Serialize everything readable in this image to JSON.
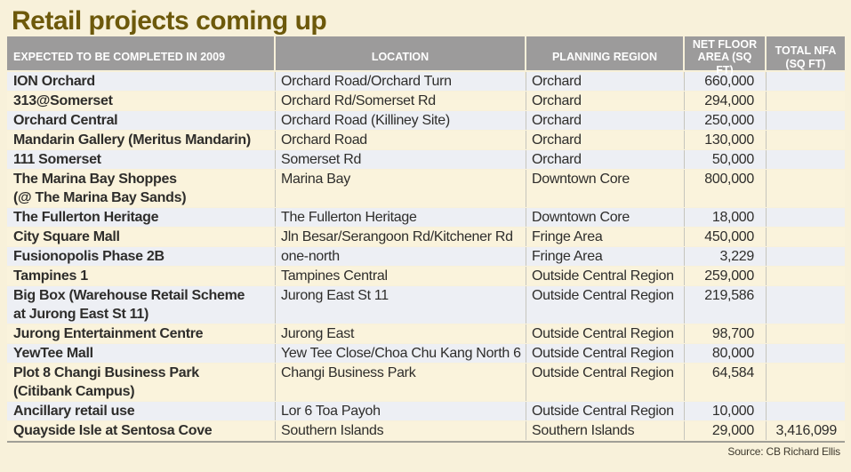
{
  "title": "Retail projects coming up",
  "source_label": "Source: CB Richard Ellis",
  "colors": {
    "page_bg": "#f8f1da",
    "title_text": "#6d590b",
    "header_bg": "#9c9b9b",
    "header_text": "#ffffff",
    "row_tint_gray": "#edeff4",
    "row_tint_cream": "#faf3dc",
    "body_text": "#2e2d2b"
  },
  "chart_data": {
    "type": "table",
    "title": "Retail projects coming up",
    "columns": [
      "EXPECTED TO BE COMPLETED IN 2009",
      "LOCATION",
      "PLANNING REGION",
      "NET FLOOR AREA (SQ FT)",
      "TOTAL NFA (SQ FT)"
    ],
    "rows": [
      {
        "name": "ION Orchard",
        "location": "Orchard Road/Orchard Turn",
        "region": "Orchard",
        "net_floor_area_sqft": "660,000",
        "total_nfa_sqft": ""
      },
      {
        "name": "313@Somerset",
        "location": "Orchard Rd/Somerset Rd",
        "region": "Orchard",
        "net_floor_area_sqft": "294,000",
        "total_nfa_sqft": ""
      },
      {
        "name": "Orchard Central",
        "location": "Orchard Road (Killiney Site)",
        "region": "Orchard",
        "net_floor_area_sqft": "250,000",
        "total_nfa_sqft": ""
      },
      {
        "name": "Mandarin Gallery (Meritus Mandarin)",
        "location": "Orchard Road",
        "region": "Orchard",
        "net_floor_area_sqft": "130,000",
        "total_nfa_sqft": ""
      },
      {
        "name": "111 Somerset",
        "location": "Somerset Rd",
        "region": "Orchard",
        "net_floor_area_sqft": "50,000",
        "total_nfa_sqft": ""
      },
      {
        "name": "The Marina Bay Shoppes\n(@ The Marina Bay Sands)",
        "location": "Marina Bay",
        "region": "Downtown Core",
        "net_floor_area_sqft": "800,000",
        "total_nfa_sqft": ""
      },
      {
        "name": "The Fullerton Heritage",
        "location": "The Fullerton Heritage",
        "region": "Downtown Core",
        "net_floor_area_sqft": "18,000",
        "total_nfa_sqft": ""
      },
      {
        "name": "City Square Mall",
        "location": "Jln Besar/Serangoon Rd/Kitchener Rd",
        "region": "Fringe Area",
        "net_floor_area_sqft": "450,000",
        "total_nfa_sqft": ""
      },
      {
        "name": "Fusionopolis Phase 2B",
        "location": "one-north",
        "region": "Fringe Area",
        "net_floor_area_sqft": "3,229",
        "total_nfa_sqft": ""
      },
      {
        "name": "Tampines 1",
        "location": "Tampines Central",
        "region": "Outside Central Region",
        "net_floor_area_sqft": "259,000",
        "total_nfa_sqft": ""
      },
      {
        "name": "Big Box (Warehouse Retail Scheme\nat Jurong East St 11)",
        "location": "Jurong East St 11",
        "region": "Outside Central Region",
        "net_floor_area_sqft": "219,586",
        "total_nfa_sqft": ""
      },
      {
        "name": "Jurong Entertainment Centre",
        "location": "Jurong East",
        "region": "Outside Central Region",
        "net_floor_area_sqft": "98,700",
        "total_nfa_sqft": ""
      },
      {
        "name": "YewTee Mall",
        "location": "Yew Tee Close/Choa Chu Kang North 6",
        "region": "Outside Central Region",
        "net_floor_area_sqft": "80,000",
        "total_nfa_sqft": ""
      },
      {
        "name": "Plot 8 Changi Business Park\n(Citibank Campus)",
        "location": "Changi Business Park",
        "region": "Outside Central Region",
        "net_floor_area_sqft": "64,584",
        "total_nfa_sqft": ""
      },
      {
        "name": "Ancillary retail use",
        "location": "Lor 6 Toa Payoh",
        "region": "Outside Central Region",
        "net_floor_area_sqft": "10,000",
        "total_nfa_sqft": ""
      },
      {
        "name": "Quayside Isle at Sentosa Cove",
        "location": "Southern Islands",
        "region": "Southern Islands",
        "net_floor_area_sqft": "29,000",
        "total_nfa_sqft": "3,416,099"
      }
    ],
    "total_nfa_sqft": "3,416,099",
    "source": "CB Richard Ellis",
    "layout": {
      "grid": "off",
      "row_striping": "alternating gray/cream starting gray"
    }
  }
}
